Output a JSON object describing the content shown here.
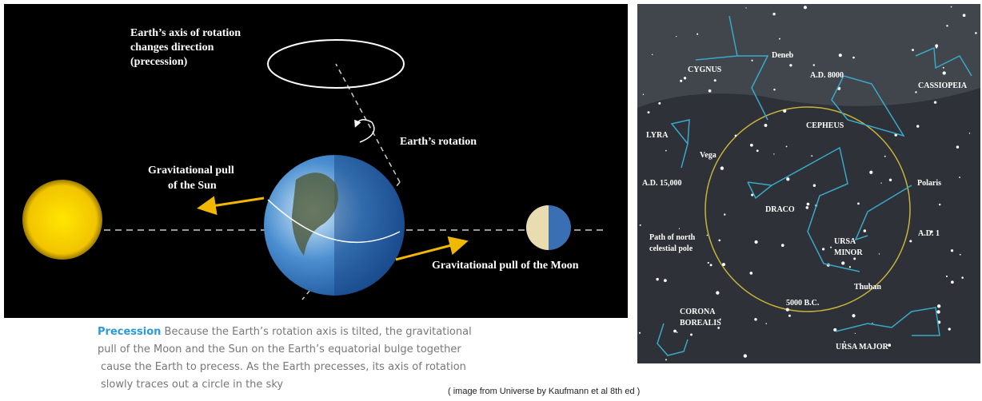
{
  "diagram": {
    "labels": {
      "axis": [
        "Earth’s axis of rotation",
        "changes direction",
        "(precession)"
      ],
      "rotation": "Earth’s rotation",
      "sun_pull": [
        "Gravitational pull",
        "of the Sun"
      ],
      "moon_pull": "Gravitational pull of the Moon"
    }
  },
  "caption": {
    "heading": "Precession",
    "lines": [
      "Because the Earth’s rotation axis is tilted, the gravitational",
      "pull of the Moon and the Sun on the Earth’s equatorial bulge together",
      "cause the Earth to precess. As the Earth precesses, its axis of rotation",
      "slowly traces out a circle in the sky"
    ]
  },
  "credit": "( image from Universe by Kaufmann et al 8th ed )",
  "star_chart": {
    "labels": [
      "Deneb",
      "CYGNUS",
      "A.D. 8000",
      "CASSIOPEIA",
      "LYRA",
      "Vega",
      "CEPHEUS",
      "A.D. 15,000",
      "Polaris",
      "DRACO",
      "Path of north",
      "celestial pole",
      "URSA",
      "MINOR",
      "A.D. 1",
      "Thuban",
      "5000 B.C.",
      "CORONA",
      "BOREALIS",
      "URSA MAJOR"
    ]
  }
}
